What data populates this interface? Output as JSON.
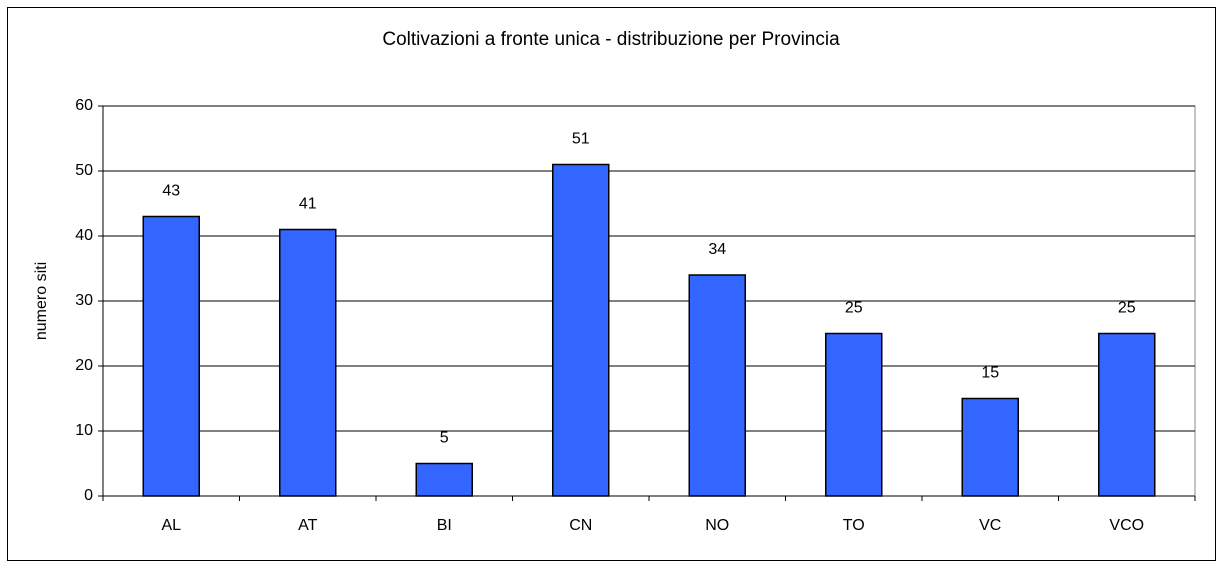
{
  "chart_data": {
    "type": "bar",
    "title": "Coltivazioni a fronte unica - distribuzione per Provincia",
    "y_label": "numero siti",
    "categories": [
      "AL",
      "AT",
      "BI",
      "CN",
      "NO",
      "TO",
      "VC",
      "VCO"
    ],
    "values": [
      43,
      41,
      5,
      51,
      34,
      25,
      15,
      25
    ],
    "color": "#3366ff",
    "ylim": [
      0,
      60
    ],
    "yticks": [
      0,
      10,
      20,
      30,
      40,
      50,
      60
    ],
    "grid": true
  }
}
